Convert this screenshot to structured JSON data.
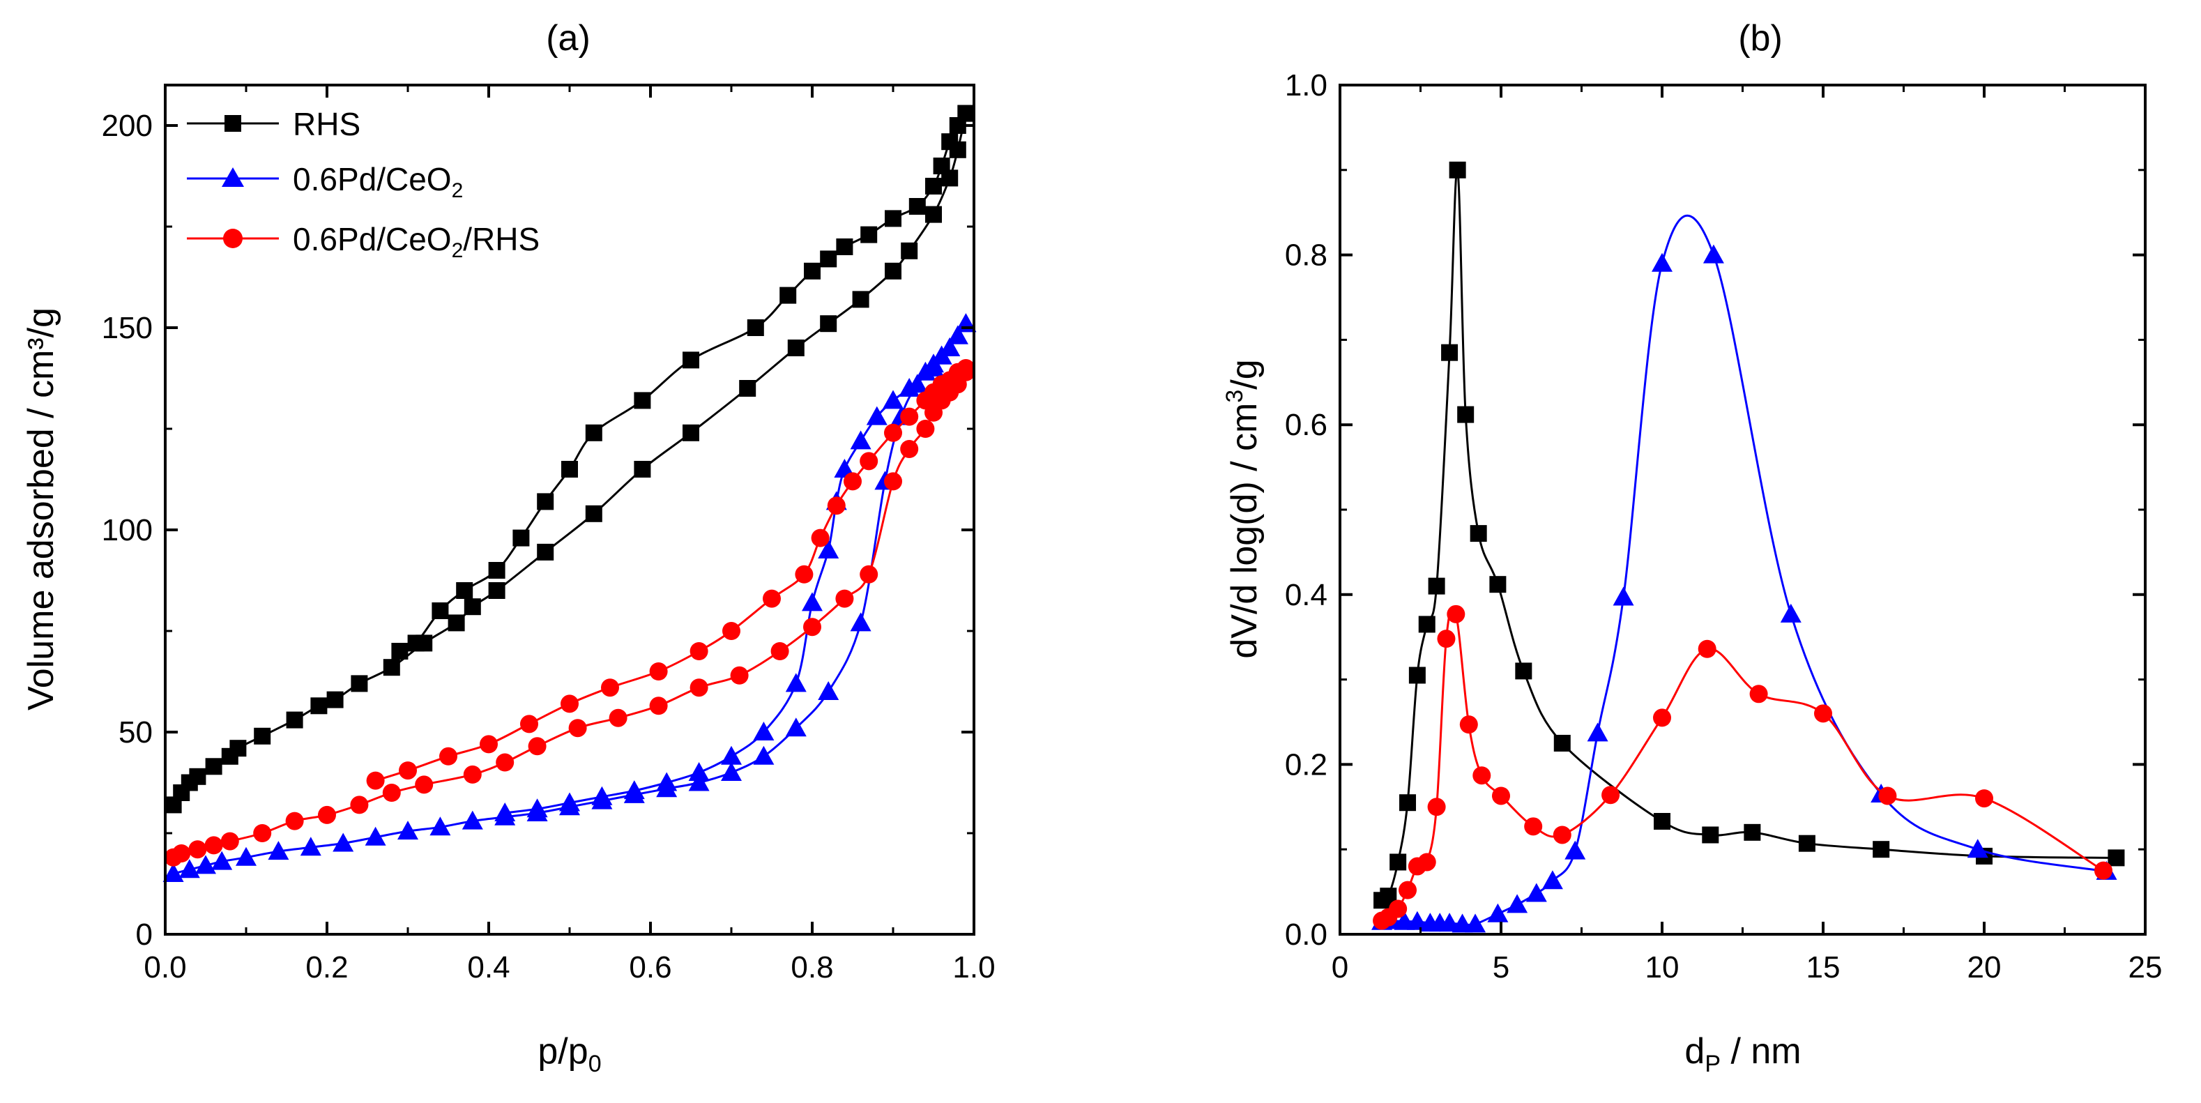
{
  "colors": {
    "black": "#000000",
    "blue": "#0000ff",
    "red": "#ff0000"
  },
  "chart_data": [
    {
      "type": "line",
      "panel_label": "(a)",
      "xlabel": "p/p",
      "xlabel_sub": "0",
      "ylabel": "Volume adsorbed / cm³/g",
      "xlim": [
        0,
        1.0
      ],
      "ylim": [
        0,
        210
      ],
      "xticks": [
        0.0,
        0.2,
        0.4,
        0.6,
        0.8,
        1.0
      ],
      "xtick_labels": [
        "0.0",
        "0.2",
        "0.4",
        "0.6",
        "0.8",
        "1.0"
      ],
      "yticks": [
        0,
        50,
        100,
        150,
        200
      ],
      "ytick_labels": [
        "0",
        "50",
        "100",
        "150",
        "200"
      ],
      "legend_position": "top-left",
      "legend": [
        {
          "name": "RHS",
          "sub": "",
          "tail": ""
        },
        {
          "name": "0.6Pd/CeO",
          "sub": "2",
          "tail": ""
        },
        {
          "name": "0.6Pd/CeO",
          "sub": "2",
          "tail": "/RHS"
        }
      ],
      "series": [
        {
          "name": "RHS",
          "marker": "square",
          "color": "#000000",
          "adsorption": [
            [
              0.01,
              32
            ],
            [
              0.02,
              35
            ],
            [
              0.03,
              37.5
            ],
            [
              0.04,
              39
            ],
            [
              0.06,
              41.5
            ],
            [
              0.08,
              44
            ],
            [
              0.09,
              46
            ],
            [
              0.12,
              49
            ],
            [
              0.16,
              53
            ],
            [
              0.19,
              56.5
            ],
            [
              0.21,
              58
            ],
            [
              0.24,
              62
            ],
            [
              0.28,
              66
            ],
            [
              0.32,
              72
            ],
            [
              0.36,
              77
            ],
            [
              0.38,
              81
            ],
            [
              0.41,
              85
            ],
            [
              0.47,
              94.5
            ],
            [
              0.53,
              104
            ],
            [
              0.59,
              115
            ],
            [
              0.65,
              124
            ],
            [
              0.72,
              135
            ],
            [
              0.78,
              145
            ],
            [
              0.82,
              151
            ],
            [
              0.86,
              157
            ],
            [
              0.9,
              164
            ],
            [
              0.92,
              169
            ],
            [
              0.95,
              178
            ],
            [
              0.97,
              187
            ],
            [
              0.98,
              194
            ],
            [
              0.99,
              203
            ]
          ],
          "desorption": [
            [
              0.99,
              203
            ],
            [
              0.98,
              200
            ],
            [
              0.97,
              196
            ],
            [
              0.96,
              190
            ],
            [
              0.95,
              185
            ],
            [
              0.93,
              180
            ],
            [
              0.9,
              177
            ],
            [
              0.87,
              173
            ],
            [
              0.84,
              170
            ],
            [
              0.82,
              167
            ],
            [
              0.8,
              164
            ],
            [
              0.77,
              158
            ],
            [
              0.73,
              150
            ],
            [
              0.65,
              142
            ],
            [
              0.59,
              132
            ],
            [
              0.53,
              124
            ],
            [
              0.5,
              115
            ],
            [
              0.47,
              107
            ],
            [
              0.44,
              98
            ],
            [
              0.41,
              90
            ],
            [
              0.37,
              85
            ],
            [
              0.34,
              80
            ],
            [
              0.31,
              72
            ],
            [
              0.29,
              70
            ]
          ]
        },
        {
          "name": "0.6Pd/CeO2",
          "marker": "triangle",
          "color": "#0000ff",
          "adsorption": [
            [
              0.01,
              15
            ],
            [
              0.03,
              16
            ],
            [
              0.05,
              17
            ],
            [
              0.07,
              18
            ],
            [
              0.1,
              19
            ],
            [
              0.14,
              20.5
            ],
            [
              0.18,
              21.5
            ],
            [
              0.22,
              22.5
            ],
            [
              0.26,
              24
            ],
            [
              0.3,
              25.5
            ],
            [
              0.34,
              26.5
            ],
            [
              0.38,
              28
            ],
            [
              0.42,
              29
            ],
            [
              0.46,
              30
            ],
            [
              0.5,
              31.5
            ],
            [
              0.54,
              33
            ],
            [
              0.58,
              34.5
            ],
            [
              0.62,
              36
            ],
            [
              0.66,
              37.5
            ],
            [
              0.7,
              40
            ],
            [
              0.74,
              44
            ],
            [
              0.78,
              51
            ],
            [
              0.82,
              60
            ],
            [
              0.86,
              77
            ],
            [
              0.89,
              112
            ],
            [
              0.91,
              128
            ],
            [
              0.93,
              136
            ],
            [
              0.95,
              140
            ],
            [
              0.96,
              143
            ],
            [
              0.97,
              145
            ],
            [
              0.98,
              148
            ],
            [
              0.99,
              151
            ]
          ],
          "desorption": [
            [
              0.99,
              151
            ],
            [
              0.98,
              148
            ],
            [
              0.97,
              145
            ],
            [
              0.96,
              143
            ],
            [
              0.95,
              141
            ],
            [
              0.94,
              139
            ],
            [
              0.92,
              135
            ],
            [
              0.9,
              132
            ],
            [
              0.88,
              128
            ],
            [
              0.86,
              122
            ],
            [
              0.84,
              115
            ],
            [
              0.83,
              107
            ],
            [
              0.82,
              95
            ],
            [
              0.8,
              82
            ],
            [
              0.78,
              62
            ],
            [
              0.74,
              50
            ],
            [
              0.7,
              44
            ],
            [
              0.66,
              40
            ],
            [
              0.62,
              37.5
            ],
            [
              0.58,
              35.5
            ],
            [
              0.54,
              34
            ],
            [
              0.5,
              32.5
            ],
            [
              0.46,
              31
            ],
            [
              0.42,
              30
            ]
          ]
        },
        {
          "name": "0.6Pd/CeO2/RHS",
          "marker": "circle",
          "color": "#ff0000",
          "adsorption": [
            [
              0.01,
              19
            ],
            [
              0.02,
              20
            ],
            [
              0.04,
              21
            ],
            [
              0.06,
              22
            ],
            [
              0.08,
              23
            ],
            [
              0.12,
              25
            ],
            [
              0.16,
              28
            ],
            [
              0.2,
              29.5
            ],
            [
              0.24,
              32
            ],
            [
              0.28,
              35
            ],
            [
              0.32,
              37
            ],
            [
              0.38,
              39.5
            ],
            [
              0.42,
              42.5
            ],
            [
              0.46,
              46.5
            ],
            [
              0.51,
              51
            ],
            [
              0.56,
              53.5
            ],
            [
              0.61,
              56.5
            ],
            [
              0.66,
              61
            ],
            [
              0.71,
              64
            ],
            [
              0.76,
              70
            ],
            [
              0.8,
              76
            ],
            [
              0.84,
              83
            ],
            [
              0.87,
              89
            ],
            [
              0.9,
              112
            ],
            [
              0.92,
              120
            ],
            [
              0.94,
              125
            ],
            [
              0.95,
              129
            ],
            [
              0.96,
              132
            ],
            [
              0.97,
              134
            ],
            [
              0.98,
              136
            ],
            [
              0.99,
              139
            ]
          ],
          "desorption": [
            [
              0.99,
              140
            ],
            [
              0.98,
              139
            ],
            [
              0.97,
              137
            ],
            [
              0.96,
              136
            ],
            [
              0.95,
              134
            ],
            [
              0.94,
              132
            ],
            [
              0.92,
              128
            ],
            [
              0.9,
              124
            ],
            [
              0.87,
              117
            ],
            [
              0.85,
              112
            ],
            [
              0.83,
              106
            ],
            [
              0.81,
              98
            ],
            [
              0.79,
              89
            ],
            [
              0.75,
              83
            ],
            [
              0.7,
              75
            ],
            [
              0.66,
              70
            ],
            [
              0.61,
              65
            ],
            [
              0.55,
              61
            ],
            [
              0.5,
              57
            ],
            [
              0.45,
              52
            ],
            [
              0.4,
              47
            ],
            [
              0.35,
              44
            ],
            [
              0.3,
              40.5
            ],
            [
              0.26,
              38
            ]
          ]
        }
      ]
    },
    {
      "type": "line",
      "panel_label": "(b)",
      "xlabel": "d",
      "xlabel_sub": "P",
      "xlabel_tail": " / nm",
      "ylabel": "dV/d log(d) / cm",
      "ylabel_sup": "3",
      "ylabel_tail": "/g",
      "xlim": [
        0,
        25
      ],
      "ylim": [
        0,
        1.0
      ],
      "xticks": [
        0,
        5,
        10,
        15,
        20,
        25
      ],
      "xtick_labels": [
        "0",
        "5",
        "10",
        "15",
        "20",
        "25"
      ],
      "yticks": [
        0.0,
        0.2,
        0.4,
        0.6,
        0.8,
        1.0
      ],
      "ytick_labels": [
        "0.0",
        "0.2",
        "0.4",
        "0.6",
        "0.8",
        "1.0"
      ],
      "series": [
        {
          "name": "RHS",
          "marker": "square",
          "color": "#000000",
          "points": [
            [
              1.3,
              0.04
            ],
            [
              1.5,
              0.045
            ],
            [
              1.8,
              0.085
            ],
            [
              2.1,
              0.155
            ],
            [
              2.4,
              0.305
            ],
            [
              2.7,
              0.365
            ],
            [
              3.0,
              0.41
            ],
            [
              3.4,
              0.685
            ],
            [
              3.65,
              0.9
            ],
            [
              3.9,
              0.612
            ],
            [
              4.3,
              0.472
            ],
            [
              4.9,
              0.412
            ],
            [
              5.7,
              0.31
            ],
            [
              6.9,
              0.225
            ],
            [
              10.0,
              0.133
            ],
            [
              11.5,
              0.117
            ],
            [
              12.8,
              0.12
            ],
            [
              14.5,
              0.107
            ],
            [
              16.8,
              0.1
            ],
            [
              20.0,
              0.092
            ],
            [
              24.1,
              0.09
            ]
          ]
        },
        {
          "name": "0.6Pd/CeO2",
          "marker": "triangle",
          "color": "#0000ff",
          "points": [
            [
              1.3,
              0.015
            ],
            [
              1.6,
              0.016
            ],
            [
              2.0,
              0.015
            ],
            [
              2.4,
              0.015
            ],
            [
              2.8,
              0.013
            ],
            [
              3.1,
              0.013
            ],
            [
              3.4,
              0.013
            ],
            [
              3.8,
              0.012
            ],
            [
              4.2,
              0.012
            ],
            [
              4.9,
              0.024
            ],
            [
              5.5,
              0.035
            ],
            [
              6.1,
              0.048
            ],
            [
              6.6,
              0.063
            ],
            [
              7.3,
              0.098
            ],
            [
              8.0,
              0.237
            ],
            [
              8.8,
              0.397
            ],
            [
              10.0,
              0.79
            ],
            [
              11.6,
              0.8
            ],
            [
              14.0,
              0.377
            ],
            [
              16.8,
              0.165
            ],
            [
              19.8,
              0.1
            ],
            [
              23.8,
              0.074
            ]
          ]
        },
        {
          "name": "0.6Pd/CeO2/RHS",
          "marker": "circle",
          "color": "#ff0000",
          "points": [
            [
              1.3,
              0.016
            ],
            [
              1.5,
              0.02
            ],
            [
              1.8,
              0.03
            ],
            [
              2.1,
              0.052
            ],
            [
              2.4,
              0.08
            ],
            [
              2.7,
              0.085
            ],
            [
              3.0,
              0.15
            ],
            [
              3.3,
              0.348
            ],
            [
              3.6,
              0.377
            ],
            [
              4.0,
              0.247
            ],
            [
              4.4,
              0.187
            ],
            [
              5.0,
              0.163
            ],
            [
              6.0,
              0.127
            ],
            [
              6.9,
              0.117
            ],
            [
              8.4,
              0.164
            ],
            [
              10.0,
              0.255
            ],
            [
              11.4,
              0.336
            ],
            [
              13.0,
              0.283
            ],
            [
              15.0,
              0.26
            ],
            [
              17.0,
              0.163
            ],
            [
              20.0,
              0.16
            ],
            [
              23.7,
              0.075
            ]
          ]
        }
      ]
    }
  ]
}
